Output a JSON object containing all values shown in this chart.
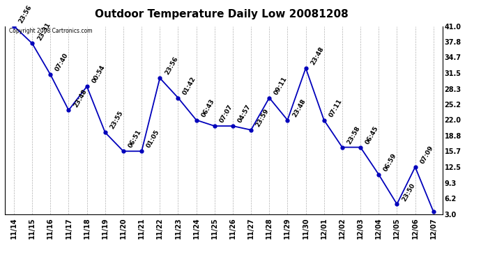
{
  "title": "Outdoor Temperature Daily Low 20081208",
  "copyright": "Copyright 2008 Cartronics.com",
  "dates": [
    "11/14",
    "11/15",
    "11/16",
    "11/17",
    "11/18",
    "11/19",
    "11/20",
    "11/21",
    "11/22",
    "11/23",
    "11/24",
    "11/25",
    "11/26",
    "11/27",
    "11/28",
    "11/29",
    "11/30",
    "12/01",
    "12/02",
    "12/03",
    "12/04",
    "12/05",
    "12/06",
    "12/07"
  ],
  "values": [
    41.0,
    37.5,
    31.2,
    24.0,
    28.8,
    19.5,
    15.7,
    15.7,
    30.5,
    26.5,
    22.0,
    20.8,
    20.8,
    20.0,
    26.5,
    22.0,
    32.5,
    22.0,
    16.5,
    16.5,
    11.0,
    5.0,
    12.5,
    3.5
  ],
  "annot_map": {
    "0": "23:56",
    "1": "23:31",
    "2": "07:40",
    "3": "23:48",
    "4": "00:54",
    "5": "23:55",
    "6": "06:51",
    "7": "01:05",
    "8": "23:56",
    "9": "01:42",
    "10": "06:43",
    "11": "07:07",
    "12": "04:57",
    "13": "23:59",
    "14": "09:11",
    "15": "23:48",
    "16": "23:48",
    "17": "07:11",
    "18": "23:58",
    "19": "06:45",
    "20": "06:59",
    "21": "23:50",
    "22": "07:09"
  },
  "yticks_right": [
    3.0,
    6.2,
    9.3,
    12.5,
    15.7,
    18.8,
    22.0,
    25.2,
    28.3,
    31.5,
    34.7,
    37.8,
    41.0
  ],
  "line_color": "#0000bb",
  "marker_color": "#0000bb",
  "background_color": "#ffffff",
  "grid_color": "#aaaaaa",
  "title_fontsize": 11,
  "label_fontsize": 7,
  "annot_fontsize": 6.5
}
